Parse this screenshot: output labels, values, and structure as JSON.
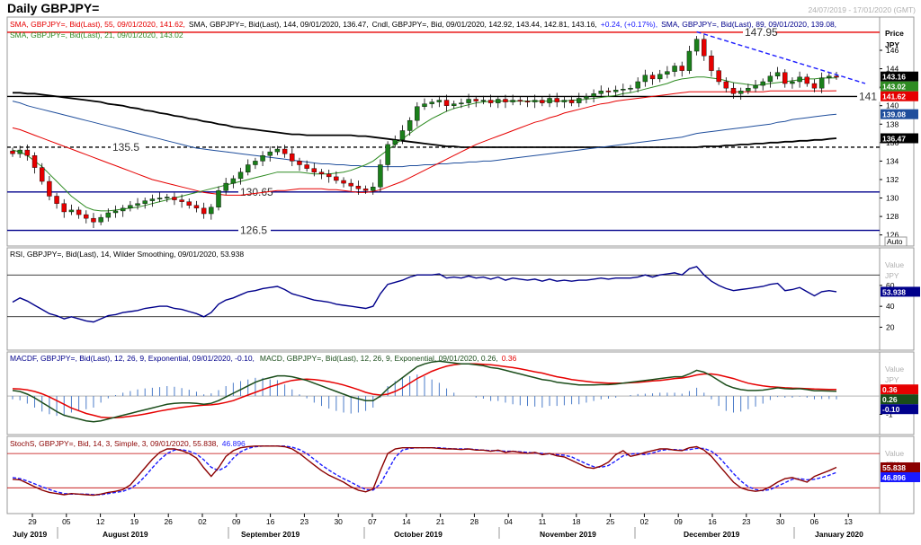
{
  "window": {
    "title": "Daily GBPJPY=",
    "date_range": "24/07/2019 - 17/01/2020 (GMT)"
  },
  "colors": {
    "sma55": "#e60000",
    "sma144": "#000000",
    "sma89": "#1f4e9c",
    "sma21": "#2e8b22",
    "bull": "#1a7f1a",
    "bear": "#e60000",
    "rsi": "#00008b",
    "macd": "#1a4d1a",
    "macd_signal": "#e60000",
    "hist": "#4a7bc8",
    "stoch_k": "#8b0000",
    "stoch_d": "#1a1aff",
    "level_red": "#e60000",
    "level_blue": "#00008b",
    "level_black": "#000000"
  },
  "panels": {
    "price": {
      "legend_line1": [
        {
          "text": "SMA, GBPJPY=, Bid(Last),  55, 09/01/2020, 141.62,",
          "color": "#e60000"
        },
        {
          "text": "SMA, GBPJPY=, Bid(Last),  144, 09/01/2020, 136.47,",
          "color": "#000000"
        },
        {
          "text": "Cndl, GBPJPY=, Bid,  09/01/2020, 142.92, 143.44, 142.81, 143.16,",
          "color": "#000000"
        },
        {
          "text": "+0.24, (+0.17%),",
          "color": "#1a1aff"
        },
        {
          "text": "SMA, GBPJPY=, Bid(Last),  89, 09/01/2020, 139.08,",
          "color": "#00008b"
        }
      ],
      "legend_line2": [
        {
          "text": "SMA, GBPJPY=, Bid(Last),  21, 09/01/2020, 143.02",
          "color": "#2e8b22"
        }
      ],
      "axis_title": "Price",
      "axis_unit": "JPY",
      "ticks": [
        "146",
        "144",
        "142",
        "140",
        "138",
        "136",
        "134",
        "132",
        "130",
        "128",
        "126"
      ],
      "tags": [
        {
          "text": "143.16",
          "color": "#000000"
        },
        {
          "text": "143.02",
          "color": "#2e8b22"
        },
        {
          "text": "141.62",
          "color": "#e60000"
        },
        {
          "text": "139.08",
          "color": "#1f4e9c"
        },
        {
          "text": "136.47",
          "color": "#000000"
        }
      ],
      "levels": [
        "147.95",
        "141",
        "135.5",
        "130.65",
        "126.5"
      ],
      "auto_label": "Auto"
    },
    "rsi": {
      "legend": "RSI, GBPJPY=, Bid(Last),  14, Wilder Smoothing, 09/01/2020, 53.938",
      "axis_title": "Value",
      "axis_unit": "JPY",
      "ticks": [
        "60",
        "40",
        "20"
      ],
      "tag": "53.938"
    },
    "macd": {
      "legend_a": "MACDF, GBPJPY=, Bid(Last),  12, 26, 9, Exponential, 09/01/2020, -0.10,",
      "legend_b": "MACD, GBPJPY=, Bid(Last),  12, 26, 9, Exponential, 09/01/2020, 0.26,",
      "legend_c": "0.36",
      "axis_title": "Value",
      "axis_unit": "JPY",
      "ticks": [
        "-1"
      ],
      "tags": [
        {
          "text": "0.36",
          "color": "#e60000"
        },
        {
          "text": "0.26",
          "color": "#1a4d1a"
        },
        {
          "text": "-0.10",
          "color": "#00008b"
        }
      ]
    },
    "stoch": {
      "legend_a": "StochS, GBPJPY=, Bid,  14, 3, Simple, 3, 09/01/2020, 55.838,",
      "legend_b": "46.896",
      "axis_title": "Value",
      "axis_unit": "JPY",
      "tags": [
        {
          "text": "55.838",
          "color": "#8b0000"
        },
        {
          "text": "46.896",
          "color": "#1a1aff"
        }
      ]
    }
  },
  "x_axis": {
    "days": [
      "29",
      "05",
      "12",
      "19",
      "26",
      "02",
      "09",
      "16",
      "23",
      "30",
      "07",
      "14",
      "21",
      "28",
      "04",
      "11",
      "18",
      "25",
      "02",
      "09",
      "16",
      "23",
      "30",
      "06",
      "13"
    ],
    "months": [
      "July 2019",
      "August 2019",
      "September 2019",
      "October 2019",
      "November 2019",
      "December 2019",
      "January 2020"
    ]
  },
  "chart_data": {
    "type": "candlestick",
    "title": "Daily GBPJPY=",
    "ylabel": "JPY",
    "ylim": [
      124.8,
      149.6
    ],
    "horizontal_levels": [
      147.95,
      141,
      135.5,
      130.65,
      126.5
    ],
    "trendline": {
      "from_close_index": 0,
      "to_close_index": 0,
      "label": ""
    },
    "close": [
      134.8,
      135.2,
      134.6,
      133.3,
      131.8,
      130.2,
      129.4,
      128.5,
      128.7,
      128.2,
      127.8,
      127.4,
      127.9,
      128.4,
      128.6,
      128.9,
      129.2,
      129.4,
      129.7,
      129.9,
      130.0,
      130.1,
      129.8,
      129.6,
      129.2,
      128.9,
      128.3,
      129.0,
      130.8,
      131.6,
      132.1,
      132.8,
      133.6,
      134.0,
      134.6,
      135.0,
      135.3,
      134.8,
      134.0,
      133.6,
      133.2,
      132.8,
      132.6,
      132.3,
      131.9,
      131.6,
      131.3,
      131.0,
      130.8,
      131.2,
      133.6,
      135.8,
      136.3,
      137.3,
      138.4,
      139.9,
      140.2,
      140.4,
      140.6,
      140.0,
      140.2,
      140.3,
      140.7,
      140.5,
      140.6,
      140.3,
      140.7,
      140.4,
      140.6,
      140.5,
      140.4,
      140.6,
      140.3,
      140.8,
      140.4,
      140.6,
      140.3,
      140.8,
      141.0,
      141.3,
      141.6,
      141.5,
      141.7,
      141.8,
      141.9,
      142.6,
      143.3,
      142.9,
      143.4,
      143.7,
      144.3,
      143.8,
      145.9,
      147.2,
      145.4,
      143.8,
      142.6,
      141.9,
      141.3,
      141.6,
      141.9,
      142.2,
      142.6,
      143.2,
      143.6,
      142.4,
      142.6,
      143.1,
      142.4,
      141.9,
      143.0,
      143.2,
      143.16
    ],
    "sma21": [
      135.2,
      135.0,
      134.6,
      134.0,
      133.4,
      132.6,
      131.8,
      131.0,
      130.2,
      129.6,
      129.0,
      128.7,
      128.6,
      128.6,
      128.7,
      128.8,
      128.9,
      129.0,
      129.2,
      129.4,
      129.6,
      129.8,
      130.0,
      130.2,
      130.4,
      130.6,
      130.8,
      131.0,
      131.2,
      131.4,
      131.6,
      131.8,
      132.0,
      132.2,
      132.4,
      132.6,
      132.8,
      132.8,
      132.8,
      132.8,
      132.7,
      132.6,
      132.6,
      132.6,
      132.7,
      132.8,
      133.0,
      133.3,
      133.6,
      134.0,
      134.6,
      135.2,
      135.8,
      136.4,
      137.0,
      137.6,
      138.1,
      138.6,
      139.0,
      139.4,
      139.7,
      139.9,
      140.1,
      140.3,
      140.4,
      140.5,
      140.5,
      140.5,
      140.5,
      140.5,
      140.5,
      140.5,
      140.5,
      140.5,
      140.5,
      140.5,
      140.6,
      140.6,
      140.7,
      140.8,
      140.9,
      141.0,
      141.1,
      141.3,
      141.4,
      141.6,
      141.8,
      142.0,
      142.2,
      142.4,
      142.7,
      142.9,
      143.0,
      143.1,
      143.1,
      143.0,
      142.9,
      142.7,
      142.5,
      142.4,
      142.3,
      142.2,
      142.3,
      142.4,
      142.5,
      142.6,
      142.7,
      142.8,
      142.9,
      142.9,
      143.0,
      143.0,
      143.02
    ],
    "sma55": [
      137.6,
      137.4,
      137.1,
      136.8,
      136.5,
      136.2,
      135.9,
      135.6,
      135.3,
      135.0,
      134.7,
      134.4,
      134.1,
      133.8,
      133.5,
      133.2,
      132.9,
      132.6,
      132.3,
      132.0,
      131.8,
      131.6,
      131.4,
      131.2,
      131.0,
      130.8,
      130.6,
      130.5,
      130.4,
      130.3,
      130.3,
      130.3,
      130.4,
      130.5,
      130.6,
      130.7,
      130.8,
      130.8,
      130.9,
      131.0,
      131.0,
      131.0,
      131.0,
      130.9,
      130.9,
      130.8,
      130.7,
      130.6,
      130.6,
      130.7,
      130.9,
      131.2,
      131.5,
      131.8,
      132.2,
      132.6,
      133.0,
      133.4,
      133.8,
      134.2,
      134.6,
      135.0,
      135.4,
      135.8,
      136.1,
      136.4,
      136.7,
      137.0,
      137.3,
      137.6,
      137.9,
      138.2,
      138.4,
      138.7,
      138.9,
      139.2,
      139.4,
      139.6,
      139.8,
      140.0,
      140.2,
      140.3,
      140.5,
      140.6,
      140.7,
      140.8,
      140.9,
      141.0,
      141.1,
      141.2,
      141.3,
      141.4,
      141.5,
      141.5,
      141.5,
      141.5,
      141.5,
      141.5,
      141.5,
      141.5,
      141.5,
      141.5,
      141.5,
      141.6,
      141.6,
      141.6,
      141.6,
      141.6,
      141.6,
      141.6,
      141.6,
      141.6,
      141.62
    ],
    "sma89": [
      140.5,
      140.3,
      140.0,
      139.8,
      139.6,
      139.4,
      139.2,
      139.0,
      138.8,
      138.6,
      138.4,
      138.2,
      138.0,
      137.8,
      137.6,
      137.4,
      137.2,
      137.0,
      136.8,
      136.6,
      136.4,
      136.2,
      136.0,
      135.8,
      135.6,
      135.4,
      135.3,
      135.2,
      135.1,
      135.0,
      134.9,
      134.8,
      134.7,
      134.6,
      134.5,
      134.4,
      134.3,
      134.2,
      134.1,
      134.0,
      133.9,
      133.8,
      133.7,
      133.7,
      133.6,
      133.6,
      133.5,
      133.5,
      133.4,
      133.4,
      133.4,
      133.4,
      133.4,
      133.4,
      133.5,
      133.5,
      133.6,
      133.6,
      133.7,
      133.7,
      133.8,
      133.8,
      133.9,
      133.9,
      134.0,
      134.0,
      134.1,
      134.2,
      134.3,
      134.4,
      134.5,
      134.6,
      134.7,
      134.8,
      134.9,
      135.0,
      135.1,
      135.2,
      135.3,
      135.4,
      135.5,
      135.6,
      135.7,
      135.8,
      135.9,
      136.0,
      136.1,
      136.2,
      136.3,
      136.4,
      136.5,
      136.6,
      136.8,
      137.0,
      137.1,
      137.2,
      137.3,
      137.4,
      137.5,
      137.6,
      137.7,
      137.8,
      137.9,
      138.0,
      138.2,
      138.3,
      138.5,
      138.6,
      138.7,
      138.8,
      138.9,
      139.0,
      139.08
    ],
    "sma144": [
      141.4,
      141.4,
      141.3,
      141.3,
      141.2,
      141.1,
      141.0,
      140.9,
      140.8,
      140.7,
      140.6,
      140.5,
      140.4,
      140.2,
      140.1,
      140.0,
      139.8,
      139.7,
      139.5,
      139.4,
      139.2,
      139.1,
      138.9,
      138.8,
      138.6,
      138.5,
      138.3,
      138.2,
      138.0,
      137.9,
      137.7,
      137.6,
      137.5,
      137.4,
      137.3,
      137.2,
      137.1,
      137.0,
      136.9,
      136.9,
      136.8,
      136.8,
      136.8,
      136.8,
      136.8,
      136.8,
      136.8,
      136.7,
      136.7,
      136.6,
      136.5,
      136.4,
      136.3,
      136.2,
      136.1,
      136.0,
      135.9,
      135.8,
      135.7,
      135.6,
      135.6,
      135.5,
      135.5,
      135.5,
      135.5,
      135.5,
      135.5,
      135.5,
      135.5,
      135.5,
      135.5,
      135.5,
      135.5,
      135.5,
      135.5,
      135.5,
      135.5,
      135.5,
      135.5,
      135.5,
      135.5,
      135.5,
      135.5,
      135.5,
      135.5,
      135.5,
      135.5,
      135.5,
      135.5,
      135.5,
      135.5,
      135.5,
      135.5,
      135.5,
      135.6,
      135.6,
      135.6,
      135.7,
      135.7,
      135.8,
      135.8,
      135.9,
      135.9,
      136.0,
      136.0,
      136.1,
      136.1,
      136.2,
      136.2,
      136.3,
      136.3,
      136.4,
      136.47
    ],
    "rsi": [
      44,
      48,
      45,
      41,
      37,
      33,
      31,
      28,
      30,
      28,
      26,
      25,
      28,
      31,
      32,
      34,
      35,
      36,
      38,
      39,
      40,
      40,
      38,
      37,
      35,
      33,
      30,
      34,
      42,
      46,
      48,
      51,
      54,
      55,
      57,
      58,
      59,
      56,
      52,
      50,
      48,
      46,
      45,
      44,
      42,
      41,
      40,
      39,
      38,
      40,
      52,
      61,
      63,
      65,
      68,
      70,
      70,
      70,
      71,
      67,
      68,
      67,
      69,
      67,
      68,
      66,
      68,
      65,
      67,
      66,
      65,
      66,
      64,
      66,
      64,
      65,
      64,
      65,
      65,
      66,
      67,
      66,
      67,
      67,
      67,
      68,
      70,
      68,
      70,
      71,
      72,
      70,
      76,
      78,
      70,
      64,
      60,
      57,
      55,
      56,
      57,
      58,
      59,
      61,
      62,
      55,
      56,
      58,
      54,
      50,
      54,
      55,
      53.938
    ],
    "macd": [
      0.3,
      0.25,
      0.1,
      -0.1,
      -0.35,
      -0.6,
      -0.85,
      -1.05,
      -1.15,
      -1.25,
      -1.35,
      -1.4,
      -1.35,
      -1.25,
      -1.15,
      -1.05,
      -0.95,
      -0.85,
      -0.75,
      -0.65,
      -0.55,
      -0.45,
      -0.4,
      -0.38,
      -0.38,
      -0.4,
      -0.45,
      -0.4,
      -0.25,
      -0.05,
      0.15,
      0.35,
      0.55,
      0.75,
      0.9,
      1.0,
      1.1,
      1.1,
      1.05,
      0.95,
      0.85,
      0.7,
      0.55,
      0.4,
      0.25,
      0.1,
      -0.05,
      -0.15,
      -0.25,
      -0.25,
      0.0,
      0.4,
      0.7,
      1.0,
      1.3,
      1.6,
      1.75,
      1.85,
      1.9,
      1.85,
      1.8,
      1.75,
      1.75,
      1.7,
      1.65,
      1.55,
      1.5,
      1.4,
      1.3,
      1.2,
      1.1,
      1.0,
      0.9,
      0.85,
      0.75,
      0.7,
      0.65,
      0.6,
      0.6,
      0.6,
      0.62,
      0.62,
      0.65,
      0.7,
      0.75,
      0.8,
      0.85,
      0.9,
      0.95,
      1.0,
      1.05,
      1.05,
      1.2,
      1.4,
      1.3,
      1.1,
      0.85,
      0.6,
      0.45,
      0.35,
      0.3,
      0.3,
      0.32,
      0.38,
      0.45,
      0.4,
      0.38,
      0.4,
      0.35,
      0.28,
      0.28,
      0.27,
      0.26
    ],
    "macd_signal": [
      0.4,
      0.38,
      0.33,
      0.25,
      0.12,
      -0.05,
      -0.25,
      -0.45,
      -0.65,
      -0.8,
      -0.95,
      -1.05,
      -1.15,
      -1.18,
      -1.18,
      -1.15,
      -1.1,
      -1.05,
      -0.98,
      -0.9,
      -0.82,
      -0.75,
      -0.68,
      -0.62,
      -0.57,
      -0.53,
      -0.5,
      -0.48,
      -0.43,
      -0.35,
      -0.25,
      -0.1,
      0.05,
      0.2,
      0.35,
      0.5,
      0.62,
      0.75,
      0.85,
      0.9,
      0.92,
      0.9,
      0.85,
      0.78,
      0.7,
      0.6,
      0.48,
      0.35,
      0.2,
      0.1,
      0.05,
      0.1,
      0.25,
      0.45,
      0.7,
      0.95,
      1.15,
      1.35,
      1.5,
      1.62,
      1.7,
      1.75,
      1.75,
      1.75,
      1.73,
      1.7,
      1.65,
      1.6,
      1.55,
      1.48,
      1.4,
      1.32,
      1.25,
      1.15,
      1.05,
      0.98,
      0.9,
      0.85,
      0.8,
      0.75,
      0.72,
      0.7,
      0.7,
      0.7,
      0.72,
      0.74,
      0.78,
      0.82,
      0.85,
      0.9,
      0.95,
      0.98,
      1.05,
      1.15,
      1.2,
      1.2,
      1.15,
      1.05,
      0.95,
      0.82,
      0.7,
      0.62,
      0.55,
      0.5,
      0.48,
      0.45,
      0.43,
      0.42,
      0.4,
      0.38,
      0.37,
      0.36,
      0.36
    ],
    "stoch_k": [
      35,
      34,
      28,
      22,
      16,
      12,
      10,
      8,
      10,
      9,
      8,
      7,
      9,
      12,
      14,
      17,
      25,
      40,
      55,
      70,
      82,
      88,
      88,
      85,
      80,
      72,
      55,
      40,
      55,
      75,
      85,
      90,
      92,
      93,
      93,
      93,
      93,
      92,
      88,
      80,
      70,
      60,
      50,
      42,
      36,
      30,
      22,
      16,
      13,
      18,
      50,
      80,
      88,
      90,
      90,
      90,
      90,
      90,
      89,
      88,
      88,
      87,
      88,
      86,
      86,
      84,
      86,
      82,
      84,
      82,
      80,
      82,
      78,
      80,
      76,
      74,
      68,
      62,
      56,
      54,
      58,
      65,
      78,
      85,
      75,
      78,
      82,
      85,
      88,
      88,
      86,
      85,
      90,
      92,
      86,
      75,
      60,
      45,
      30,
      20,
      16,
      14,
      16,
      22,
      30,
      36,
      38,
      34,
      30,
      40,
      45,
      50,
      55.838
    ],
    "stoch_d": [
      38,
      36,
      32,
      27,
      22,
      17,
      13,
      10,
      9,
      9,
      9,
      8,
      8,
      10,
      12,
      14,
      19,
      27,
      40,
      55,
      69,
      80,
      86,
      87,
      84,
      79,
      69,
      56,
      50,
      57,
      72,
      83,
      89,
      92,
      93,
      93,
      93,
      93,
      91,
      87,
      80,
      70,
      60,
      51,
      43,
      36,
      30,
      23,
      17,
      16,
      27,
      50,
      73,
      86,
      89,
      90,
      90,
      90,
      90,
      89,
      88,
      88,
      88,
      87,
      86,
      85,
      85,
      84,
      84,
      83,
      82,
      81,
      80,
      79,
      78,
      77,
      74,
      68,
      62,
      57,
      56,
      59,
      67,
      76,
      79,
      80,
      78,
      81,
      85,
      87,
      87,
      86,
      87,
      89,
      89,
      84,
      74,
      60,
      45,
      32,
      22,
      17,
      15,
      17,
      23,
      29,
      35,
      36,
      34,
      35,
      38,
      42,
      46.896
    ]
  }
}
